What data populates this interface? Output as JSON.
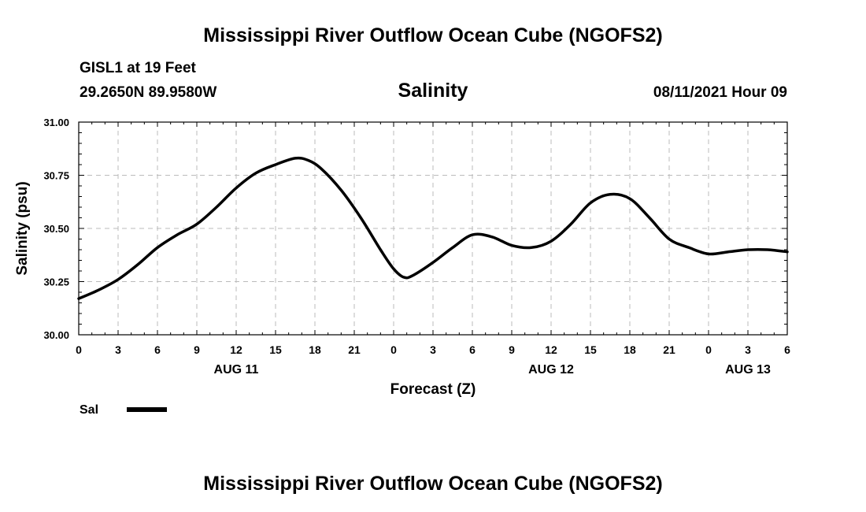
{
  "header": {
    "main_title": "Mississippi River Outflow Ocean Cube (NGOFS2)",
    "station": "GISL1 at 19 Feet",
    "coordinates": "29.2650N  89.9580W",
    "chart_title": "Salinity",
    "datetime": "08/11/2021 Hour 09"
  },
  "footer": {
    "title": "Mississippi River Outflow Ocean Cube (NGOFS2)"
  },
  "colors": {
    "line": "#000000",
    "grid": "#bbbbbb"
  },
  "chart_data": {
    "type": "line",
    "title": "Salinity",
    "xlabel": "Forecast (Z)",
    "ylabel": "Salinity (psu)",
    "x_unit": "hours since 2021-08-11 00Z",
    "xlim": [
      0,
      54
    ],
    "ylim": [
      30.0,
      31.0
    ],
    "grid": true,
    "y_ticks": [
      30.0,
      30.25,
      30.5,
      30.75,
      31.0
    ],
    "y_tick_labels": [
      "30.00",
      "30.25",
      "30.50",
      "30.75",
      "31.00"
    ],
    "x_ticks": [
      0,
      3,
      6,
      9,
      12,
      15,
      18,
      21,
      24,
      27,
      30,
      33,
      36,
      39,
      42,
      45,
      48,
      51,
      54
    ],
    "x_tick_labels": [
      "0",
      "3",
      "6",
      "9",
      "12",
      "15",
      "18",
      "21",
      "0",
      "3",
      "6",
      "9",
      "12",
      "15",
      "18",
      "21",
      "0",
      "3",
      "6"
    ],
    "date_labels": [
      {
        "x": 12,
        "label": "AUG 11"
      },
      {
        "x": 36,
        "label": "AUG 12"
      },
      {
        "x": 51,
        "label": "AUG 13"
      }
    ],
    "legend": {
      "position": "bottom-left",
      "entries": [
        {
          "name": "Sal"
        }
      ]
    },
    "series": [
      {
        "name": "Sal",
        "x": [
          0,
          1.5,
          3,
          4.5,
          6,
          7.5,
          9,
          10.5,
          12,
          13.5,
          15,
          16.5,
          17.5,
          18.5,
          20,
          21.5,
          23,
          24,
          24.8,
          25.5,
          27,
          28.5,
          30,
          31.5,
          33,
          34.5,
          36,
          37.5,
          39,
          40.5,
          42,
          43.5,
          45,
          46.5,
          48,
          49.5,
          51,
          52.5,
          54
        ],
        "y": [
          30.17,
          30.21,
          30.26,
          30.33,
          30.41,
          30.47,
          30.52,
          30.6,
          30.69,
          30.76,
          30.8,
          30.83,
          30.82,
          30.78,
          30.68,
          30.55,
          30.4,
          30.31,
          30.27,
          30.28,
          30.34,
          30.41,
          30.47,
          30.46,
          30.42,
          30.41,
          30.44,
          30.52,
          30.62,
          30.66,
          30.64,
          30.55,
          30.45,
          30.41,
          30.38,
          30.39,
          30.4,
          30.4,
          30.39
        ]
      }
    ]
  }
}
